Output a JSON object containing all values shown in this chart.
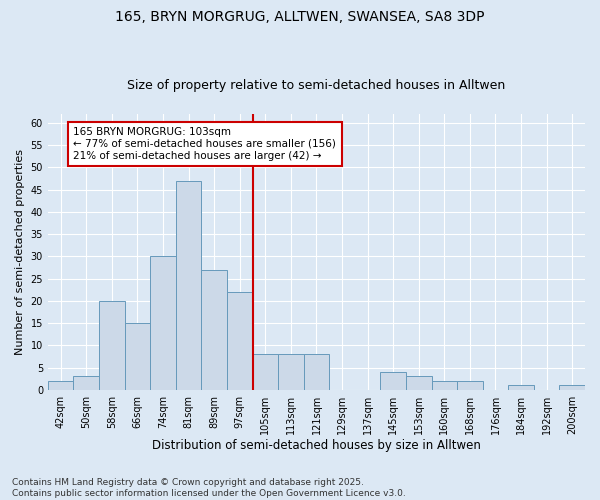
{
  "title1": "165, BRYN MORGRUG, ALLTWEN, SWANSEA, SA8 3DP",
  "title2": "Size of property relative to semi-detached houses in Alltwen",
  "xlabel": "Distribution of semi-detached houses by size in Alltwen",
  "ylabel": "Number of semi-detached properties",
  "categories": [
    "42sqm",
    "50sqm",
    "58sqm",
    "66sqm",
    "74sqm",
    "81sqm",
    "89sqm",
    "97sqm",
    "105sqm",
    "113sqm",
    "121sqm",
    "129sqm",
    "137sqm",
    "145sqm",
    "153sqm",
    "160sqm",
    "168sqm",
    "176sqm",
    "184sqm",
    "192sqm",
    "200sqm"
  ],
  "values": [
    2,
    3,
    20,
    15,
    30,
    47,
    27,
    22,
    8,
    8,
    8,
    0,
    0,
    4,
    3,
    2,
    2,
    0,
    1,
    0,
    1
  ],
  "bar_color": "#ccd9e8",
  "bar_edge_color": "#6699bb",
  "background_color": "#dce8f4",
  "grid_color": "#ffffff",
  "vline_color": "#cc0000",
  "annotation_text": "165 BRYN MORGRUG: 103sqm\n← 77% of semi-detached houses are smaller (156)\n21% of semi-detached houses are larger (42) →",
  "annotation_box_color": "#cc0000",
  "ylim": [
    0,
    62
  ],
  "yticks": [
    0,
    5,
    10,
    15,
    20,
    25,
    30,
    35,
    40,
    45,
    50,
    55,
    60
  ],
  "footer": "Contains HM Land Registry data © Crown copyright and database right 2025.\nContains public sector information licensed under the Open Government Licence v3.0.",
  "title1_fontsize": 10,
  "title2_fontsize": 9,
  "xlabel_fontsize": 8.5,
  "ylabel_fontsize": 8,
  "tick_fontsize": 7,
  "footer_fontsize": 6.5
}
